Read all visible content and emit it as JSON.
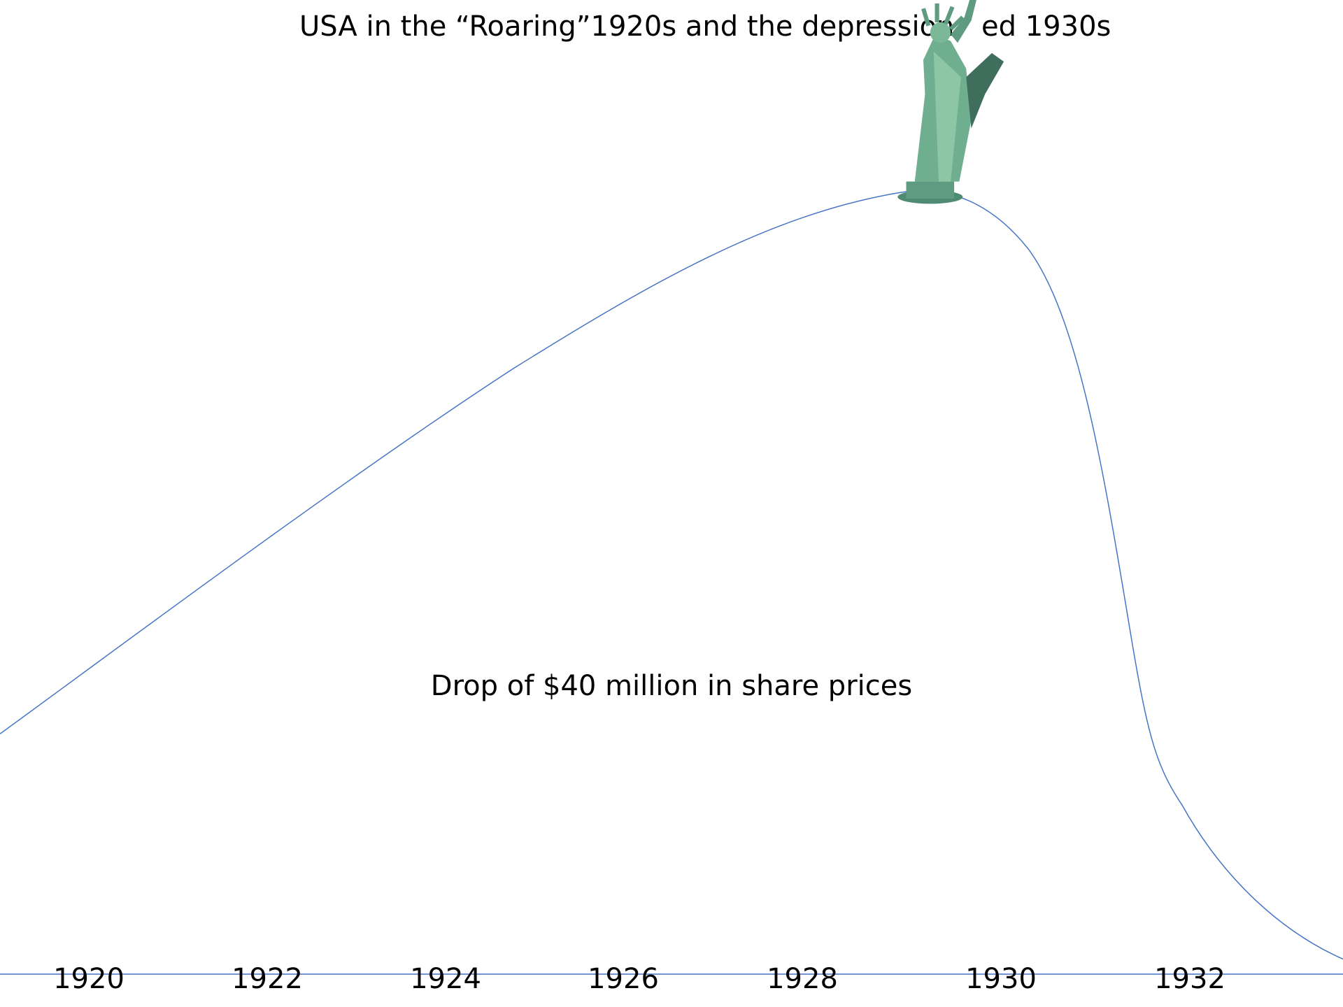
{
  "title": {
    "left": "USA in the “Roaring”1920s and the depression",
    "right": "ed 1930s"
  },
  "annotation": "Drop of $40 million in share prices",
  "timeline": [
    "1920",
    "1922",
    "1924",
    "1926",
    "1928",
    "1930",
    "1932"
  ]
}
